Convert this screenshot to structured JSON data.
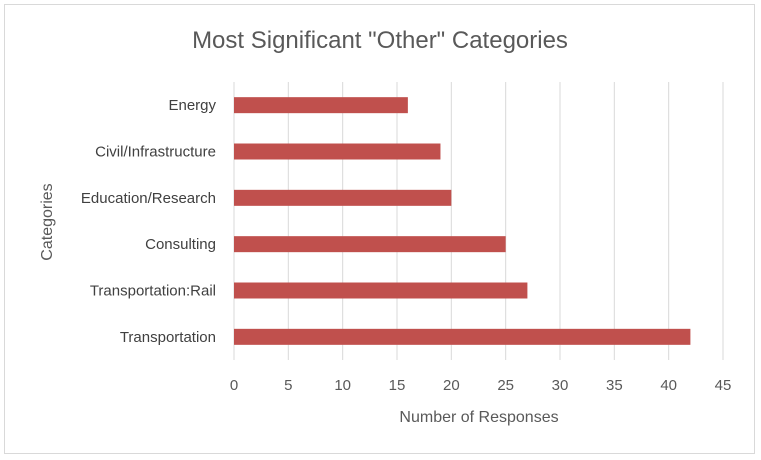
{
  "chart_data": {
    "type": "bar",
    "orientation": "horizontal",
    "title": "Most Significant \"Other\" Categories",
    "xlabel": "Number of Responses",
    "ylabel": "Categories",
    "categories": [
      "Energy",
      "Civil/Infrastructure",
      "Education/Research",
      "Consulting",
      "Transportation:Rail",
      "Transportation"
    ],
    "values": [
      16,
      19,
      20,
      25,
      27,
      42
    ],
    "xlim": [
      0,
      45
    ],
    "xticks": [
      0,
      5,
      10,
      15,
      20,
      25,
      30,
      35,
      40,
      45
    ],
    "grid": true,
    "legend": "none",
    "bar_color": "#c0504d"
  }
}
